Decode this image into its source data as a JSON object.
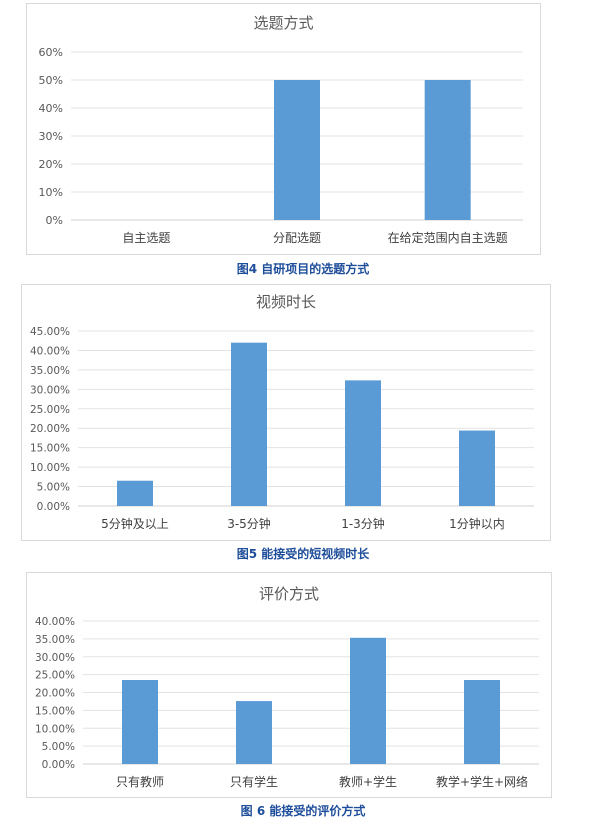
{
  "chart_data": [
    {
      "type": "bar",
      "title": "选题方式",
      "categories": [
        "自主选题",
        "分配选题",
        "在给定范围内自主选题"
      ],
      "values": [
        0,
        50,
        50
      ],
      "ylim": [
        0,
        60
      ],
      "yticks": [
        "0%",
        "10%",
        "20%",
        "30%",
        "40%",
        "50%",
        "60%"
      ],
      "grid": true,
      "color": "#5b9bd5",
      "caption": "图4 自研项目的选题方式"
    },
    {
      "type": "bar",
      "title": "视频时长",
      "categories": [
        "5分钟及以上",
        "3-5分钟",
        "1-3分钟",
        "1分钟以内"
      ],
      "values": [
        6.5,
        42.0,
        32.3,
        19.4
      ],
      "ylim": [
        0,
        45
      ],
      "yticks": [
        "0.00%",
        "5.00%",
        "10.00%",
        "15.00%",
        "20.00%",
        "25.00%",
        "30.00%",
        "35.00%",
        "40.00%",
        "45.00%"
      ],
      "grid": true,
      "color": "#5b9bd5",
      "caption": "图5 能接受的短视频时长"
    },
    {
      "type": "bar",
      "title": "评价方式",
      "categories": [
        "只有教师",
        "只有学生",
        "教师+学生",
        "教学+学生+网络"
      ],
      "values": [
        23.5,
        17.6,
        35.3,
        23.5
      ],
      "ylim": [
        0,
        40
      ],
      "yticks": [
        "0.00%",
        "5.00%",
        "10.00%",
        "15.00%",
        "20.00%",
        "25.00%",
        "30.00%",
        "35.00%",
        "40.00%"
      ],
      "grid": true,
      "color": "#5b9bd5",
      "caption": "图 6 能接受的评价方式"
    }
  ]
}
